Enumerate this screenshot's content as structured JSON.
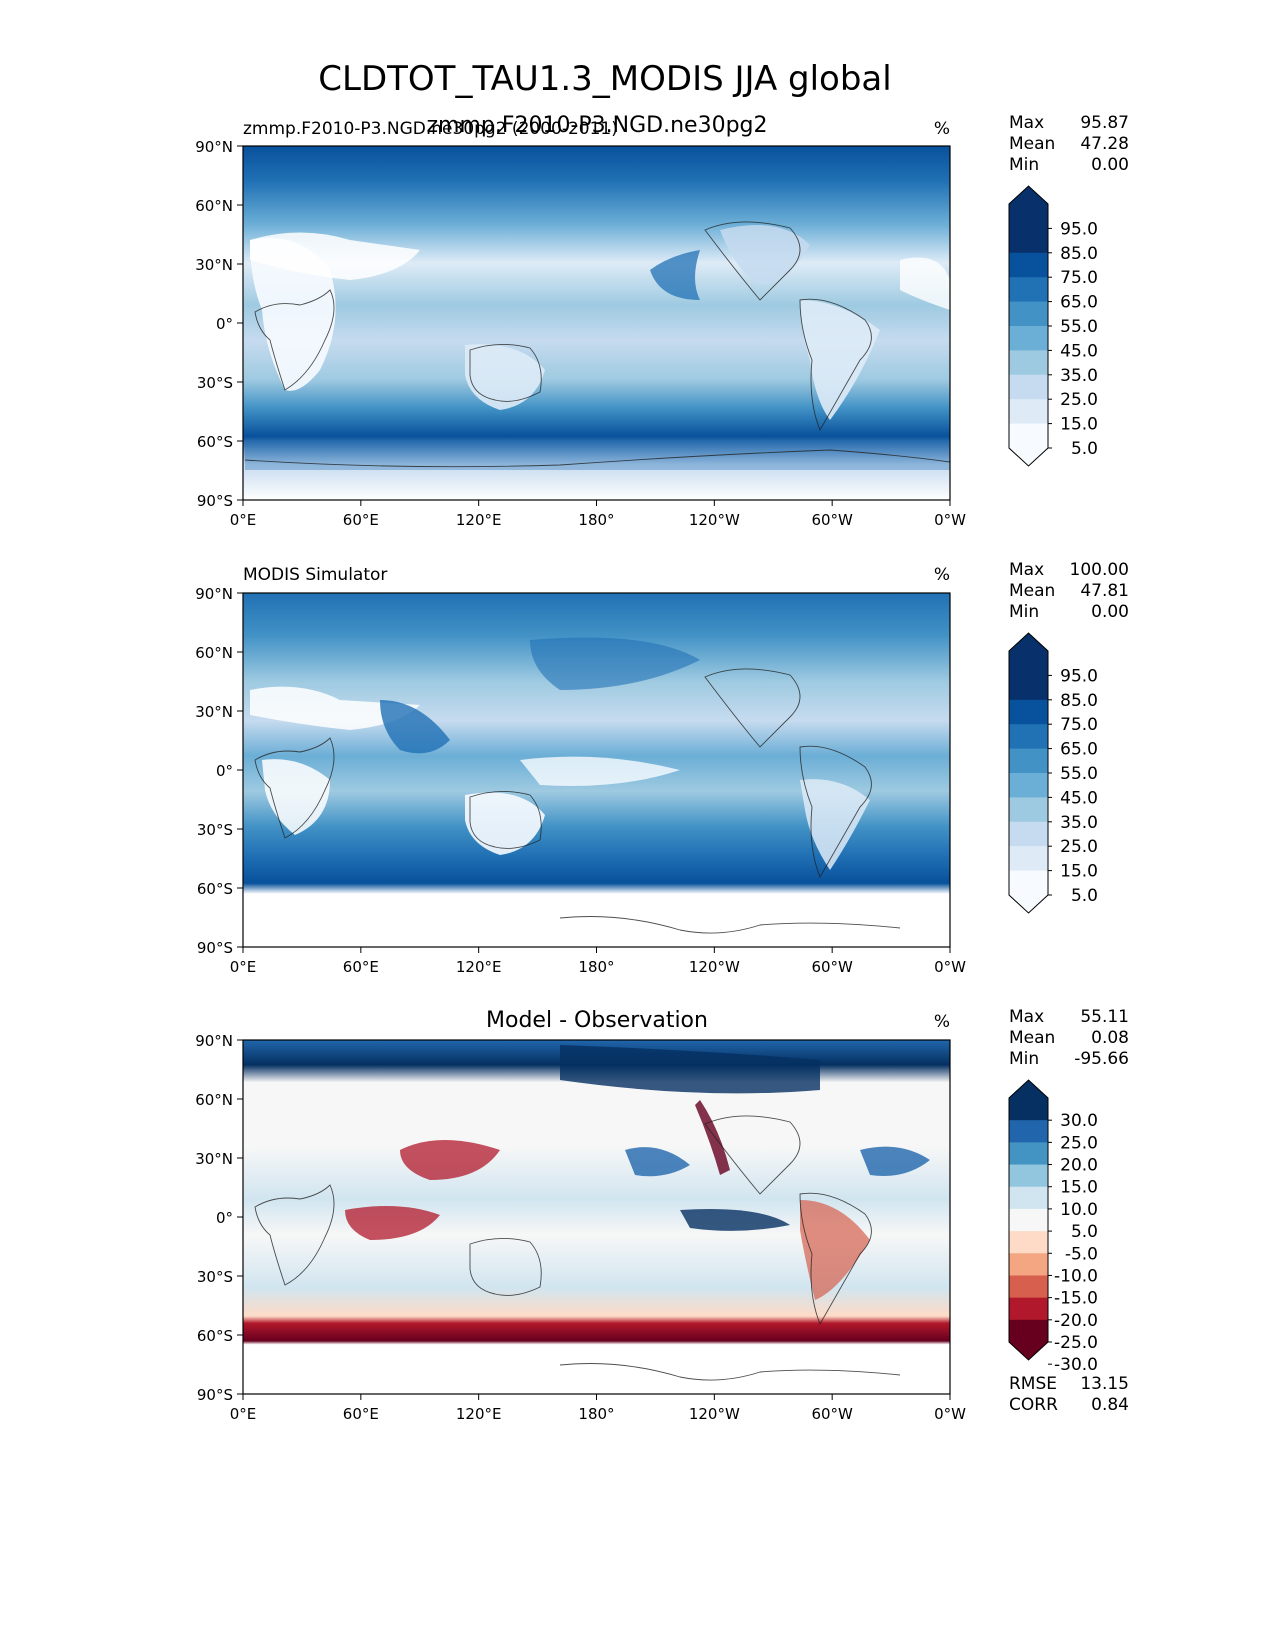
{
  "figure": {
    "title": "CLDTOT_TAU1.3_MODIS JJA global",
    "colors": {
      "blues": [
        "#f7fbff",
        "#deebf7",
        "#c6dbef",
        "#9ecae1",
        "#6baed6",
        "#4292c6",
        "#2171b5",
        "#08519c",
        "#08306b",
        "#08306b"
      ],
      "diverging": [
        "#67001f",
        "#b2182b",
        "#d6604d",
        "#f4a582",
        "#fddbc7",
        "#f7f7f7",
        "#d1e5f0",
        "#92c5de",
        "#4393c3",
        "#2166ac",
        "#053061"
      ]
    }
  },
  "panels": [
    {
      "id": "test",
      "left_title": "zmmp.F2010-P3.NGD.ne30pg2 (2000-2011)",
      "center_title": "zmmp.F2010-P3.NGD.ne30pg2",
      "units": "%",
      "stats": [
        {
          "label": "Max",
          "value": "95.87"
        },
        {
          "label": "Mean",
          "value": "47.28"
        },
        {
          "label": "Min",
          "value": "0.00"
        }
      ],
      "colorbar": [
        "95.0",
        "85.0",
        "75.0",
        "65.0",
        "55.0",
        "45.0",
        "35.0",
        "25.0",
        "15.0",
        "5.0"
      ],
      "map_icon": "cloud-fraction-field-map"
    },
    {
      "id": "reference",
      "left_title": "MODIS Simulator",
      "center_title": "",
      "units": "%",
      "stats": [
        {
          "label": "Max",
          "value": "100.00"
        },
        {
          "label": "Mean",
          "value": "47.81"
        },
        {
          "label": "Min",
          "value": "0.00"
        }
      ],
      "colorbar": [
        "95.0",
        "85.0",
        "75.0",
        "65.0",
        "55.0",
        "45.0",
        "35.0",
        "25.0",
        "15.0",
        "5.0"
      ],
      "map_icon": "cloud-fraction-field-map"
    },
    {
      "id": "difference",
      "left_title": "",
      "center_title": "Model - Observation",
      "units": "%",
      "stats": [
        {
          "label": "Max",
          "value": "55.11"
        },
        {
          "label": "Mean",
          "value": "0.08"
        },
        {
          "label": "Min",
          "value": "-95.66"
        }
      ],
      "colorbar": [
        "30.0",
        "25.0",
        "20.0",
        "15.0",
        "10.0",
        "5.0",
        "-5.0",
        "-10.0",
        "-15.0",
        "-20.0",
        "-25.0",
        "-30.0"
      ],
      "metrics": [
        {
          "label": "RMSE",
          "value": "13.15"
        },
        {
          "label": "CORR",
          "value": "0.84"
        }
      ],
      "map_icon": "difference-field-map"
    }
  ],
  "axes": {
    "lat_ticks": [
      "90°N",
      "60°N",
      "30°N",
      "0°",
      "30°S",
      "60°S",
      "90°S"
    ],
    "lon_ticks": [
      "0°E",
      "60°E",
      "120°E",
      "180°",
      "120°W",
      "60°W",
      "0°W"
    ]
  }
}
